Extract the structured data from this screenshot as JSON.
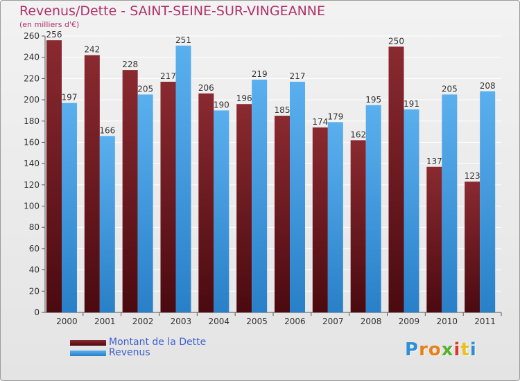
{
  "title": "Revenus/Dette - SAINT-SEINE-SUR-VINGEANNE",
  "subtitle": "(en milliers d'€)",
  "colors": {
    "dette": "#7a1a22",
    "revenus": "#3c9be0",
    "title": "#b0306a",
    "legend_text": "#3c5fd0"
  },
  "legend": [
    {
      "label": "Montant de la Dette",
      "color": "#7a1a22"
    },
    {
      "label": "Revenus",
      "color": "#3c9be0"
    }
  ],
  "logo": "Proxiti",
  "chart_data": {
    "type": "bar",
    "categories": [
      "2000",
      "2001",
      "2002",
      "2003",
      "2004",
      "2005",
      "2006",
      "2007",
      "2008",
      "2009",
      "2010",
      "2011"
    ],
    "series": [
      {
        "name": "Montant de la Dette",
        "values": [
          256,
          242,
          228,
          217,
          206,
          196,
          185,
          174,
          162,
          250,
          137,
          123
        ]
      },
      {
        "name": "Revenus",
        "values": [
          197,
          166,
          205,
          251,
          190,
          219,
          217,
          179,
          195,
          191,
          205,
          208
        ]
      }
    ],
    "ylim": [
      0,
      260
    ],
    "yticks": [
      0,
      20,
      40,
      60,
      80,
      100,
      120,
      140,
      160,
      180,
      200,
      220,
      240,
      260
    ],
    "grid": true,
    "legend_position": "bottom-left"
  }
}
